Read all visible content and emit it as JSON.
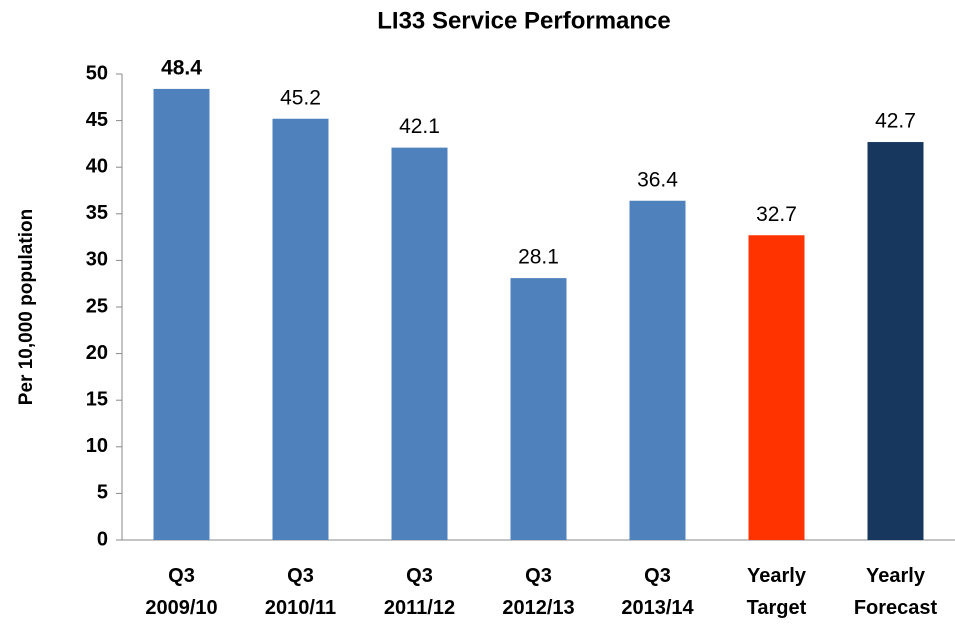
{
  "chart_data": {
    "type": "bar",
    "title": "LI33 Service Performance",
    "y_label": "Per 10,000 population",
    "categories": [
      "Q3 2009/10",
      "Q3 2010/11",
      "Q3 2011/12",
      "Q3 2012/13",
      "Q3 2013/14",
      "Yearly Target",
      "Yearly Forecast"
    ],
    "values": [
      48.4,
      45.2,
      42.1,
      28.1,
      36.4,
      32.7,
      42.7
    ],
    "colors": [
      "#4f81bd",
      "#4f81bd",
      "#4f81bd",
      "#4f81bd",
      "#4f81bd",
      "#ff3300",
      "#17375e"
    ],
    "ylim": [
      0,
      50
    ],
    "yticks": [
      0,
      5,
      10,
      15,
      20,
      25,
      30,
      35,
      40,
      45,
      50
    ],
    "grid": false
  }
}
